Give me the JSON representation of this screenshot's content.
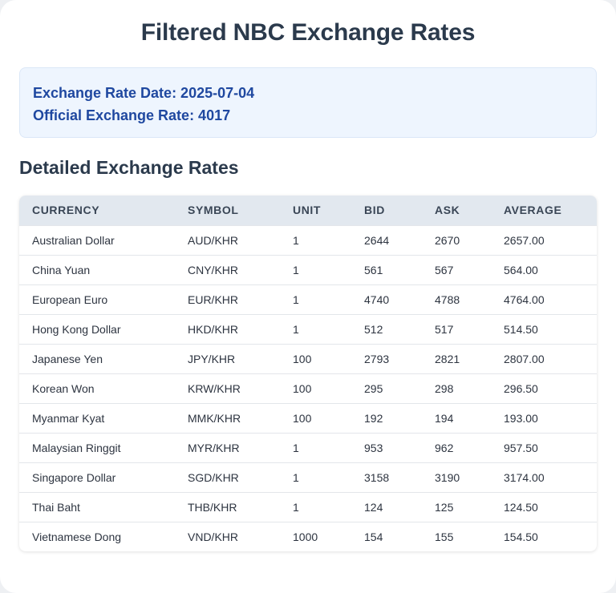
{
  "page": {
    "title": "Filtered NBC Exchange Rates",
    "date_line": "Exchange Rate Date: 2025-07-04",
    "official_line": "Official Exchange Rate: 4017",
    "section_title": "Detailed Exchange Rates"
  },
  "table": {
    "headers": [
      "CURRENCY",
      "SYMBOL",
      "UNIT",
      "BID",
      "ASK",
      "AVERAGE"
    ],
    "rows": [
      [
        "Australian Dollar",
        "AUD/KHR",
        "1",
        "2644",
        "2670",
        "2657.00"
      ],
      [
        "China Yuan",
        "CNY/KHR",
        "1",
        "561",
        "567",
        "564.00"
      ],
      [
        "European Euro",
        "EUR/KHR",
        "1",
        "4740",
        "4788",
        "4764.00"
      ],
      [
        "Hong Kong Dollar",
        "HKD/KHR",
        "1",
        "512",
        "517",
        "514.50"
      ],
      [
        "Japanese Yen",
        "JPY/KHR",
        "100",
        "2793",
        "2821",
        "2807.00"
      ],
      [
        "Korean Won",
        "KRW/KHR",
        "100",
        "295",
        "298",
        "296.50"
      ],
      [
        "Myanmar Kyat",
        "MMK/KHR",
        "100",
        "192",
        "194",
        "193.00"
      ],
      [
        "Malaysian Ringgit",
        "MYR/KHR",
        "1",
        "953",
        "962",
        "957.50"
      ],
      [
        "Singapore Dollar",
        "SGD/KHR",
        "1",
        "3158",
        "3190",
        "3174.00"
      ],
      [
        "Thai Baht",
        "THB/KHR",
        "1",
        "124",
        "125",
        "124.50"
      ],
      [
        "Vietnamese Dong",
        "VND/KHR",
        "1000",
        "154",
        "155",
        "154.50"
      ]
    ]
  },
  "colors": {
    "title": "#2b3a4c",
    "info_text": "#1f48a0",
    "info_bg": "#eef5fe",
    "header_bg": "#e2e8ef"
  }
}
